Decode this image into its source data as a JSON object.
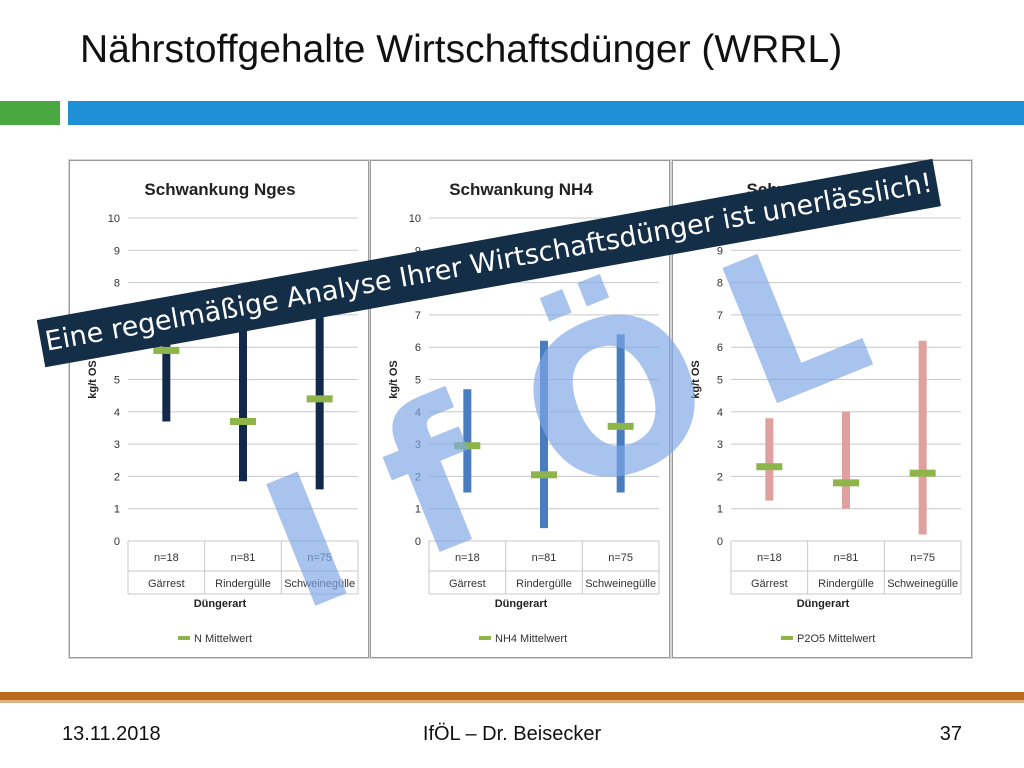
{
  "title": "Nährstoffgehalte Wirtschaftsdünger (WRRL)",
  "banner": "Eine regelmäßige Analyse Ihrer Wirtschaftsdünger ist unerlässlich!",
  "watermark": [
    "I",
    "f",
    "Ö",
    "L"
  ],
  "footer": {
    "date": "13.11.2018",
    "center": "IfÖL – Dr. Beisecker",
    "page": "37"
  },
  "colors": {
    "accent_green": "#4aa843",
    "accent_blue": "#1f8fd6",
    "footer_brown": "#b96a1a",
    "banner_bg": "#142e48",
    "watermark": "#7fa6e6"
  },
  "chart_data": [
    {
      "type": "range-bar",
      "title": "Schwankung Nges",
      "xlabel": "Düngerart",
      "ylabel": "kg/t OS",
      "ylim": [
        0,
        10
      ],
      "yticks": [
        0,
        1,
        2,
        3,
        4,
        5,
        6,
        7,
        8,
        9,
        10
      ],
      "counts": [
        "n=18",
        "n=81",
        "n=75"
      ],
      "categories": [
        "Gärrest",
        "Rindergülle",
        "Schweinegülle"
      ],
      "min": [
        3.7,
        1.85,
        1.6
      ],
      "max": [
        7.1,
        6.6,
        8.3
      ],
      "mean": [
        5.9,
        3.7,
        4.4
      ],
      "range_color": "#13294a",
      "mean_color": "#8db54a",
      "legend": "N  Mittelwert"
    },
    {
      "type": "range-bar",
      "title": "Schwankung NH4",
      "xlabel": "Düngerart",
      "ylabel": "kg/t OS",
      "ylim": [
        0,
        10
      ],
      "yticks": [
        0,
        1,
        2,
        3,
        4,
        5,
        6,
        7,
        8,
        9,
        10
      ],
      "counts": [
        "n=18",
        "n=81",
        "n=75"
      ],
      "categories": [
        "Gärrest",
        "Rindergülle",
        "Schweinegülle"
      ],
      "min": [
        1.5,
        0.4,
        1.5
      ],
      "max": [
        4.7,
        6.2,
        6.4
      ],
      "mean": [
        2.95,
        2.05,
        3.55
      ],
      "range_color": "#4a7cc0",
      "mean_color": "#8db54a",
      "legend": "NH4 Mittelwert"
    },
    {
      "type": "range-bar",
      "title": "Schwankung P2O5",
      "xlabel": "Düngerart",
      "ylabel": "kg/t OS",
      "ylim": [
        0,
        10
      ],
      "yticks": [
        0,
        1,
        2,
        3,
        4,
        5,
        6,
        7,
        8,
        9,
        10
      ],
      "counts": [
        "n=18",
        "n=81",
        "n=75"
      ],
      "categories": [
        "Gärrest",
        "Rindergülle",
        "Schweinegülle"
      ],
      "min": [
        1.25,
        1.0,
        0.2
      ],
      "max": [
        3.8,
        4.0,
        6.2
      ],
      "mean": [
        2.3,
        1.8,
        2.1
      ],
      "range_color": "#e0a0a0",
      "mean_color": "#8db54a",
      "legend": "P2O5 Mittelwert"
    }
  ]
}
